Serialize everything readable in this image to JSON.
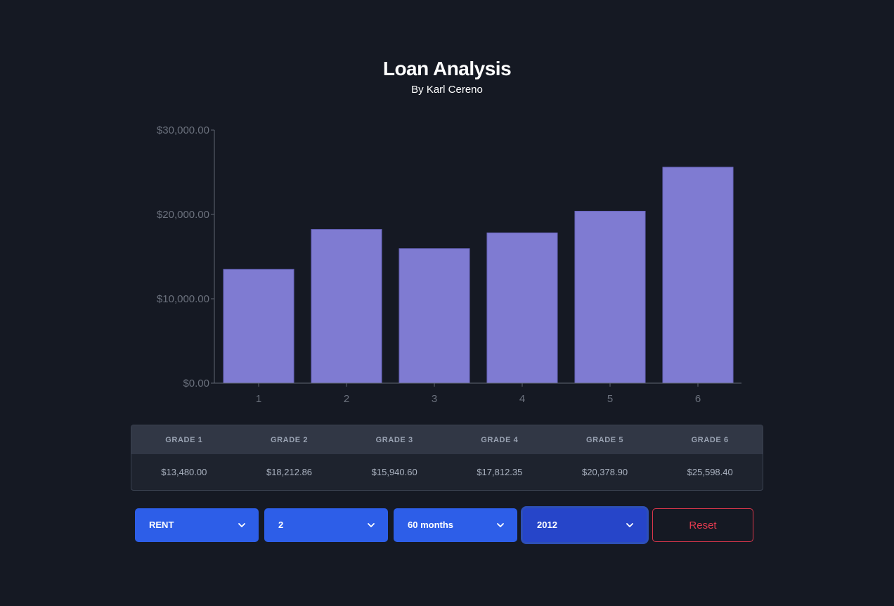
{
  "header": {
    "title": "Loan Analysis",
    "subtitle": "By Karl Cereno"
  },
  "chart_data": {
    "type": "bar",
    "title": "",
    "xlabel": "",
    "ylabel": "",
    "categories": [
      "1",
      "2",
      "3",
      "4",
      "5",
      "6"
    ],
    "values": [
      13480.0,
      18212.86,
      15940.6,
      17812.35,
      20378.9,
      25598.4
    ],
    "ylim": [
      0,
      30000
    ],
    "yticks": [
      0,
      10000,
      20000,
      30000
    ],
    "ytick_labels": [
      "$0.00",
      "$10,000.00",
      "$20,000.00",
      "$30,000.00"
    ],
    "grid": false,
    "legend": "none",
    "bar_color": "#7f7bd2",
    "axis_color": "#5f6572",
    "tick_label_color": "#6b717d"
  },
  "grade_table": {
    "headers": [
      "GRADE 1",
      "GRADE 2",
      "GRADE 3",
      "GRADE 4",
      "GRADE 5",
      "GRADE 6"
    ],
    "values": [
      "$13,480.00",
      "$18,212.86",
      "$15,940.60",
      "$17,812.35",
      "$20,378.90",
      "$25,598.40"
    ]
  },
  "controls": {
    "home_ownership": "RENT",
    "grade": "2",
    "term": "60 months",
    "year": "2012",
    "reset_label": "Reset",
    "dropdown_icon": "chevron-down-icon",
    "accent_color": "#2d5ee8",
    "danger_color": "#e23a4f"
  }
}
